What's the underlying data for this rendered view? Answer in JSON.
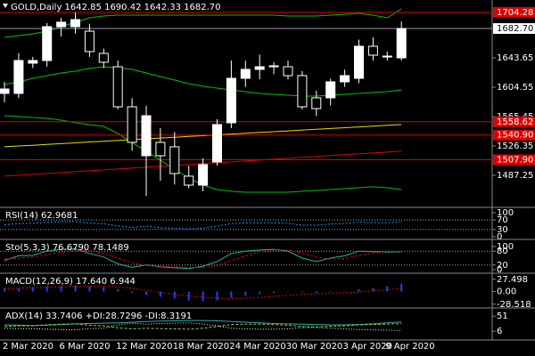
{
  "chart_data": {
    "type": "candlestick",
    "title": "GOLD,Daily  1642.85 1690.42 1642.33 1682.70",
    "categories": [
      null,
      "2 Mar 2020",
      null,
      null,
      null,
      "6 Mar 2020",
      null,
      null,
      null,
      "12 Mar 2020",
      null,
      null,
      null,
      "18 Mar 2020",
      null,
      null,
      null,
      "24 Mar 2020",
      null,
      null,
      null,
      "30 Mar 2020",
      null,
      null,
      null,
      "3 Apr 2020",
      null,
      null,
      "9 Apr 2020"
    ],
    "open": [
      1596.3,
      1596.3,
      1636.6,
      1640.1,
      1685.2,
      1685.2,
      1679.2,
      1649.6,
      1631.8,
      1578.5,
      1513.3,
      1531.1,
      1525.2,
      1486.1,
      1474.2,
      1505.0,
      1557.2,
      1616.4,
      1628.3,
      1631.8,
      1631.8,
      1620.0,
      1590.4,
      1590.4,
      1611.7,
      1616.4,
      1659.1,
      1646.0,
      1643.7
    ],
    "high": [
      1611.7,
      1650.0,
      1645.0,
      1690.0,
      1697.0,
      1704.0,
      1689.0,
      1656.0,
      1640.0,
      1590.0,
      1580.0,
      1550.0,
      1545.0,
      1500.0,
      1510.0,
      1562.0,
      1640.0,
      1640.0,
      1648.0,
      1638.0,
      1640.0,
      1626.0,
      1600.0,
      1616.0,
      1628.0,
      1668.0,
      1671.0,
      1652.0,
      1692.0
    ],
    "low": [
      1584.4,
      1590.0,
      1630.0,
      1632.0,
      1672.0,
      1676.0,
      1645.0,
      1630.0,
      1575.0,
      1520.0,
      1460.0,
      1480.0,
      1475.0,
      1470.0,
      1466.0,
      1500.0,
      1550.0,
      1605.0,
      1615.0,
      1622.0,
      1615.0,
      1575.0,
      1566.0,
      1580.0,
      1605.0,
      1610.0,
      1640.0,
      1640.0,
      1640.0
    ],
    "close": [
      1602.2,
      1640.1,
      1640.1,
      1685.2,
      1691.1,
      1694.6,
      1652.0,
      1637.8,
      1578.5,
      1531.1,
      1566.6,
      1513.3,
      1489.6,
      1474.2,
      1501.5,
      1554.8,
      1616.4,
      1628.3,
      1631.8,
      1633.0,
      1620.0,
      1578.5,
      1576.1,
      1611.7,
      1620.0,
      1659.1,
      1647.2,
      1644.9,
      1682.7
    ],
    "up_color": "#ffffff",
    "down_color": "#000000",
    "candle_stroke": "#ffffff",
    "ylim": [
      1448.1,
      1720.7
    ],
    "yticks": [
      1643.65,
      1604.55,
      1565.45,
      1526.35,
      1487.25
    ],
    "last_price": {
      "value": 1682.7,
      "label": "1682.70"
    },
    "level_color": "#e00000",
    "levels": [
      1704.28,
      1558.62,
      {
        "value": 1540.9,
        "label": "1540.90"
      },
      {
        "value": 1507.9,
        "label": "1507.90"
      }
    ],
    "series": [
      {
        "color": "#00c000",
        "values": [
          1670.9,
          1673.3,
          1675.7,
          1679.2,
          1685.2,
          1691.1,
          1697.0,
          1699.4,
          1700.6,
          1700.6,
          1700.6,
          1700.6,
          1700.6,
          1700.6,
          1700.6,
          1700.6,
          1700.6,
          1700.6,
          1700.6,
          1700.6,
          1699.4,
          1699.4,
          1699.4,
          1700.6,
          1701.7,
          1702.9,
          1700.6,
          1697.0,
          1708.9
        ]
      },
      {
        "color": "#00c000",
        "values": [
          1608.1,
          1611.7,
          1616.4,
          1620.0,
          1623.5,
          1625.9,
          1629.5,
          1631.8,
          1630.6,
          1628.3,
          1623.5,
          1618.8,
          1614.1,
          1609.3,
          1605.8,
          1603.4,
          1601.0,
          1598.6,
          1596.3,
          1595.1,
          1593.9,
          1592.7,
          1592.7,
          1593.9,
          1595.1,
          1596.3,
          1597.5,
          1598.6,
          1601.0
        ]
      },
      {
        "color": "#00c000",
        "values": [
          1566.6,
          1565.5,
          1564.3,
          1563.1,
          1560.7,
          1557.2,
          1554.8,
          1552.4,
          1543.0,
          1531.1,
          1519.3,
          1507.4,
          1495.5,
          1483.7,
          1474.2,
          1468.3,
          1466.0,
          1464.7,
          1464.7,
          1464.7,
          1464.7,
          1466.0,
          1467.1,
          1468.3,
          1469.5,
          1470.7,
          1471.9,
          1470.7,
          1468.3
        ]
      },
      {
        "color": "#e0e000",
        "values": [
          1525.2,
          1526.3,
          1527.3,
          1528.4,
          1529.4,
          1530.5,
          1531.6,
          1532.6,
          1533.7,
          1534.7,
          1535.8,
          1536.9,
          1537.9,
          1539.0,
          1540.0,
          1541.1,
          1542.2,
          1543.2,
          1544.3,
          1545.3,
          1546.4,
          1547.5,
          1548.5,
          1549.6,
          1550.6,
          1551.7,
          1552.8,
          1553.8,
          1554.9
        ]
      },
      {
        "color": "#e00000",
        "values": [
          1486.1,
          1487.3,
          1488.5,
          1489.7,
          1490.9,
          1492.1,
          1493.2,
          1494.4,
          1495.6,
          1496.8,
          1498.0,
          1499.2,
          1500.4,
          1501.6,
          1502.8,
          1504.0,
          1505.1,
          1506.3,
          1507.5,
          1508.7,
          1509.9,
          1511.1,
          1512.3,
          1513.5,
          1514.7,
          1515.9,
          1517.0,
          1518.2,
          1519.4
        ]
      }
    ],
    "panels": [
      {
        "title": "RSI(14) 62.9681",
        "ylim": [
          0,
          100
        ],
        "yticks": [
          100,
          70,
          30,
          0
        ],
        "levels": [
          70,
          30
        ],
        "series": [
          {
            "type": "line",
            "color": "#1e90ff",
            "dash": "2,2",
            "values": [
              50,
              55,
              56,
              60,
              62,
              63,
              57,
              54,
              45,
              38,
              44,
              38,
              35,
              33,
              36,
              44,
              55,
              57,
              58,
              58,
              56,
              48,
              48,
              53,
              55,
              61,
              58,
              58,
              63
            ]
          }
        ]
      },
      {
        "title": "Sto(5,3,3) 76.6790 78.1489",
        "ylim": [
          0,
          100
        ],
        "yticks": [
          100,
          80,
          20,
          0
        ],
        "levels": [
          80,
          20
        ],
        "series": [
          {
            "type": "line",
            "color": "#20b2aa",
            "dash": "",
            "values": [
              40,
              60,
              62,
              80,
              88,
              90,
              70,
              55,
              25,
              10,
              20,
              12,
              8,
              5,
              15,
              35,
              70,
              80,
              85,
              88,
              80,
              50,
              35,
              50,
              60,
              80,
              78,
              76,
              77
            ]
          },
          {
            "type": "line",
            "color": "#e00000",
            "dash": "3,2",
            "values": [
              45,
              50,
              55,
              65,
              75,
              85,
              82,
              70,
              50,
              30,
              18,
              15,
              12,
              10,
              9,
              18,
              40,
              60,
              78,
              85,
              85,
              72,
              55,
              45,
              48,
              62,
              72,
              78,
              78
            ]
          }
        ]
      },
      {
        "title": "MACD(12,26,9) 17.640 6.944",
        "ylim": [
          -35,
          35
        ],
        "yticks": [
          27.498,
          {
            "value": 0,
            "label": "0.00"
          },
          -28.518
        ],
        "levels": [],
        "series": [
          {
            "type": "bar",
            "color": "#2040ff",
            "values": [
              8,
              8,
              10,
              12,
              13,
              14,
              12,
              10,
              5,
              -3,
              -8,
              -12,
              -16,
              -20,
              -22,
              -20,
              -14,
              -10,
              -6,
              -3,
              -1,
              -2,
              -3,
              -1,
              1,
              5,
              8,
              12,
              17.64
            ]
          },
          {
            "type": "line",
            "color": "#e00000",
            "dash": "2,2",
            "values": [
              6,
              7,
              8,
              9,
              10,
              11,
              12,
              12,
              10,
              7,
              3,
              -2,
              -6,
              -10,
              -13,
              -15,
              -16,
              -15,
              -13,
              -11,
              -9,
              -7,
              -5,
              -4,
              -3,
              -1,
              2,
              4,
              6.944
            ]
          }
        ]
      },
      {
        "title": "ADX(14) 33.7406 +DI:28.7296 -DI:8.3191",
        "ylim": [
          -20,
          70
        ],
        "yticks": [
          51,
          6
        ],
        "levels": [],
        "series": [
          {
            "type": "line",
            "color": "#20b2aa",
            "dash": "",
            "values": [
              25,
              24,
              23,
              24,
              26,
              28,
              29,
              30,
              31,
              33,
              35,
              36,
              37,
              38,
              38,
              37,
              35,
              33,
              31,
              29,
              28,
              27,
              26,
              25,
              25,
              26,
              28,
              31,
              33.7406
            ]
          },
          {
            "type": "line",
            "color": "#9acd32",
            "dash": "3,2",
            "values": [
              20,
              22,
              22,
              25,
              27,
              28,
              24,
              22,
              16,
              13,
              15,
              14,
              13,
              12,
              15,
              20,
              26,
              27,
              27,
              26,
              24,
              20,
              19,
              21,
              22,
              25,
              26,
              27,
              28.7296
            ]
          },
          {
            "type": "line",
            "color": "#ffffff",
            "dash": "1,2",
            "values": [
              15,
              14,
              14,
              12,
              11,
              10,
              14,
              15,
              25,
              30,
              27,
              29,
              30,
              31,
              27,
              22,
              15,
              13,
              12,
              12,
              13,
              17,
              17,
              15,
              13,
              11,
              10,
              9,
              8.3191
            ]
          }
        ]
      }
    ]
  }
}
